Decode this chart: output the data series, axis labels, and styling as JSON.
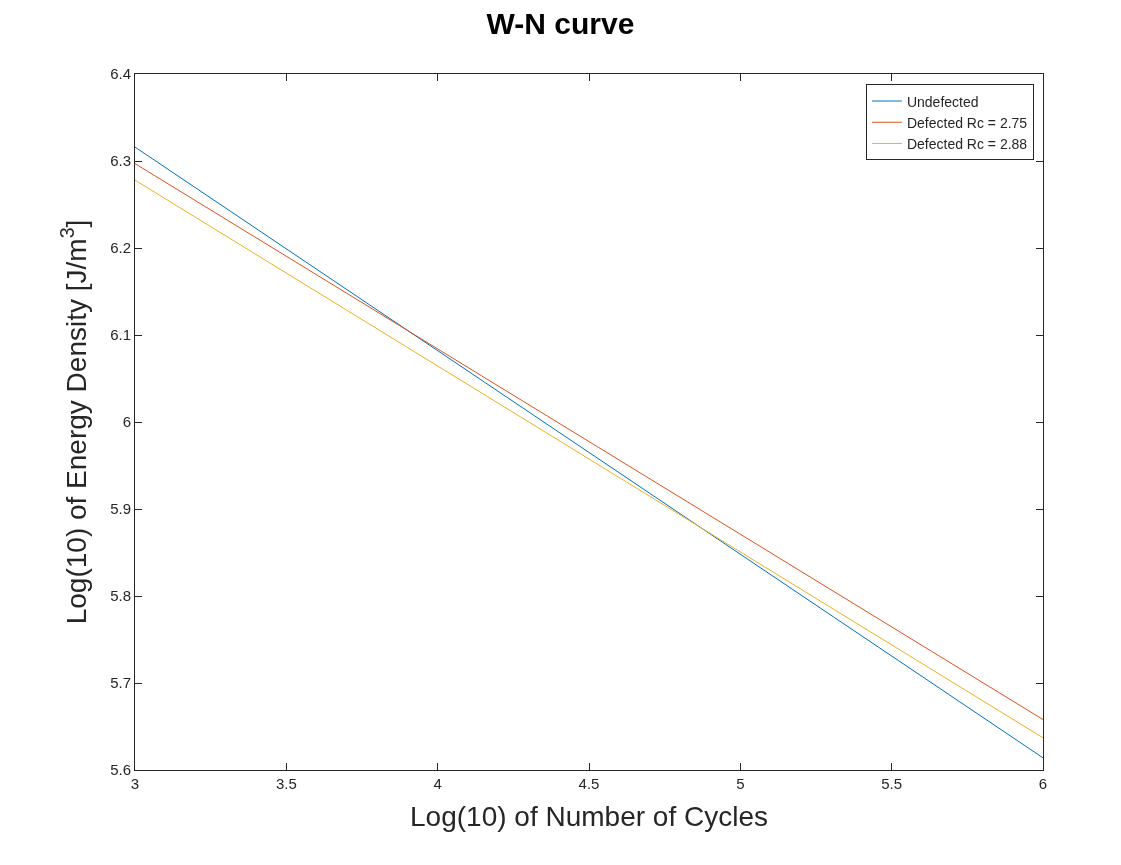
{
  "chart_data": {
    "type": "line",
    "title": "W-N curve",
    "xlabel": "Log(10) of Number of Cycles",
    "ylabel": "Log(10) of Energy Density [J/m$^{3}$]",
    "x": [
      3,
      6
    ],
    "series": [
      {
        "name": "Undefected",
        "color": "#0072bd",
        "values": [
          6.316,
          5.614
        ]
      },
      {
        "name": "Defected Rc = 2.75",
        "color": "#d95319",
        "values": [
          6.297,
          5.658
        ]
      },
      {
        "name": "Defected Rc = 2.88",
        "color": "#edb120",
        "values": [
          6.278,
          5.637
        ]
      }
    ],
    "xlim": [
      3,
      6
    ],
    "xticks": [
      3,
      3.5,
      4,
      4.5,
      5,
      5.5,
      6
    ],
    "ylim": [
      5.6,
      6.4
    ],
    "yticks": [
      5.6,
      5.7,
      5.8,
      5.9,
      6,
      6.1,
      6.2,
      6.3,
      6.4
    ],
    "legend": "top right",
    "marker": "none",
    "line_style": "solid"
  }
}
